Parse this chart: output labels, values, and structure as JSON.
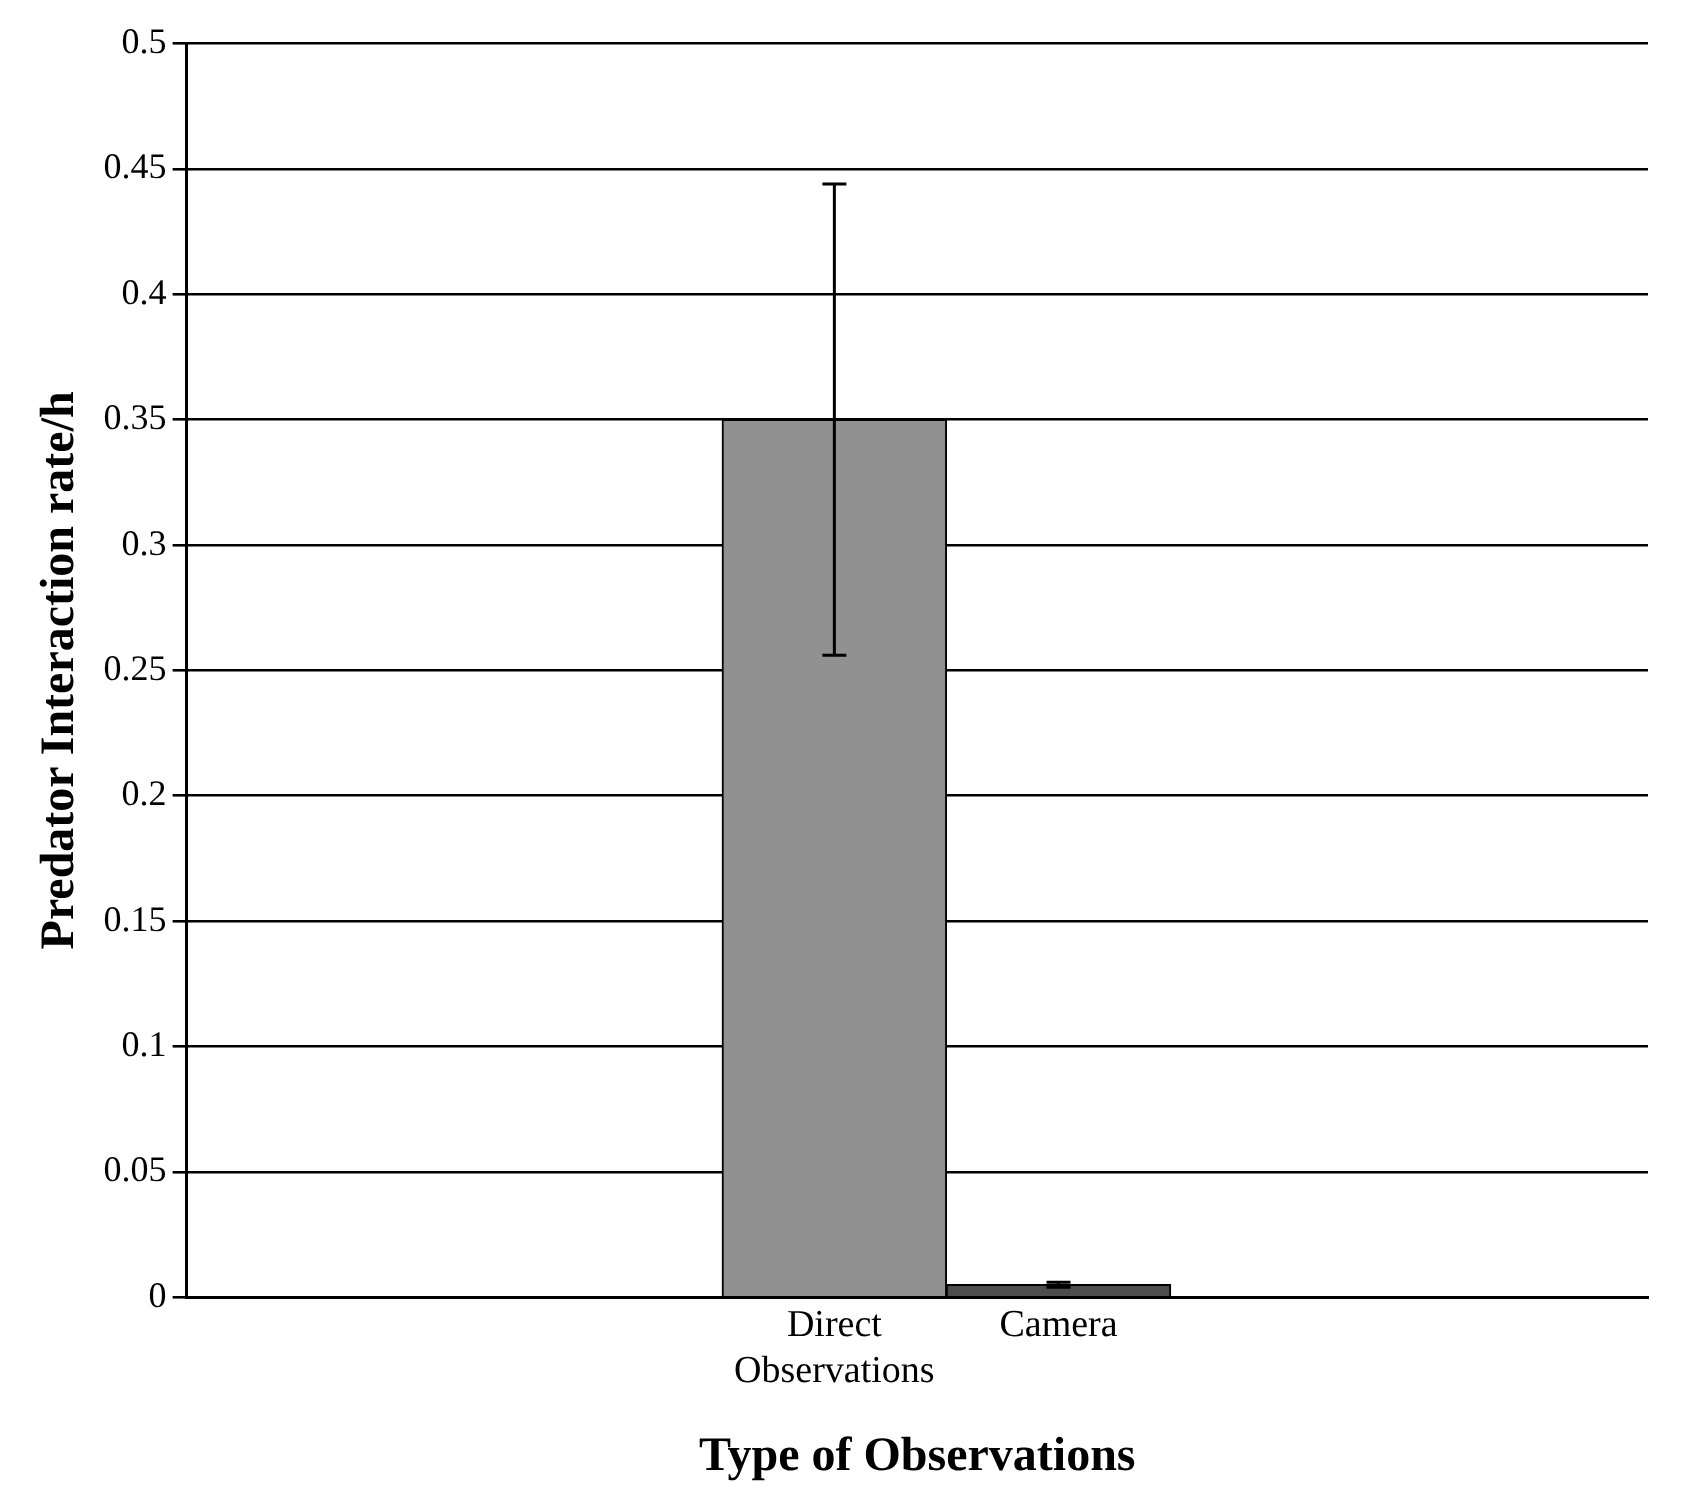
{
  "chart_data": {
    "type": "bar",
    "xlabel": "Type of Observations",
    "ylabel": "Predator Interaction rate/h",
    "categories": [
      "Direct Observations",
      "Camera"
    ],
    "values": [
      0.35,
      0.005
    ],
    "errors": [
      0.094,
      0.001
    ],
    "colors": [
      "#919191",
      "#4d4d4d"
    ],
    "ylim": [
      0,
      0.5
    ],
    "yticks": [
      0,
      0.05,
      0.1,
      0.15,
      0.2,
      0.25,
      0.3,
      0.35,
      0.4,
      0.45,
      0.5
    ],
    "grid": "y",
    "legend": false
  }
}
